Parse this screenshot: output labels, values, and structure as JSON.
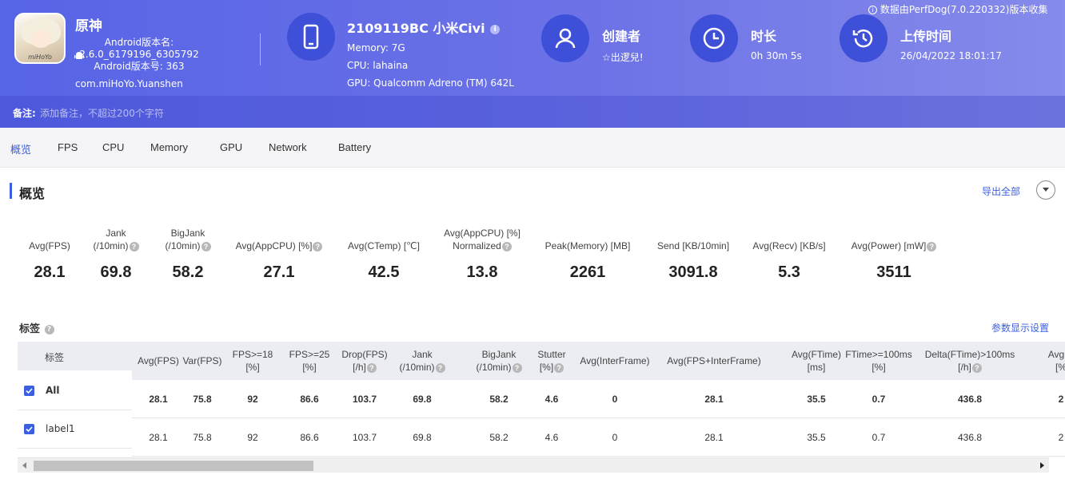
{
  "header": {
    "app_icon_text": "miHoYo",
    "app_name": "原神",
    "android_version_label": "Android版本名:",
    "android_version_name": "2.6.0_6179196_6305792",
    "android_version_code": "Android版本号: 363",
    "package": "com.miHoYo.Yuanshen",
    "device_title": "2109119BC 小米Civi",
    "memory": "Memory: 7G",
    "cpu": "CPU: lahaina",
    "gpu": "GPU: Qualcomm Adreno (TM) 642L",
    "creator_title": "创建者",
    "creator_value": "☆出逻兒!",
    "duration_title": "时长",
    "duration_value": "0h 30m 5s",
    "upload_title": "上传时间",
    "upload_value": "26/04/2022 18:01:17",
    "credit": "数据由PerfDog(7.0.220332)版本收集",
    "note_label": "备注:",
    "note_placeholder": "添加备注，不超过200个字符"
  },
  "tabs": [
    "概览",
    "FPS",
    "CPU",
    "Memory",
    "GPU",
    "Network",
    "Battery"
  ],
  "active_tab": "概览",
  "overview": {
    "title": "概览",
    "export": "导出全部",
    "metrics": [
      {
        "label1": "",
        "label2": "Avg(FPS)",
        "value": "28.1",
        "help": false
      },
      {
        "label1": "Jank",
        "label2": "(/10min)",
        "value": "69.8",
        "help": true
      },
      {
        "label1": "BigJank",
        "label2": "(/10min)",
        "value": "58.2",
        "help": true
      },
      {
        "label1": "",
        "label2": "Avg(AppCPU) [%]",
        "value": "27.1",
        "help": true
      },
      {
        "label1": "",
        "label2": "Avg(CTemp) [℃]",
        "value": "42.5",
        "help": false
      },
      {
        "label1": "Avg(AppCPU) [%]",
        "label2": "Normalized",
        "value": "13.8",
        "help": true
      },
      {
        "label1": "",
        "label2": "Peak(Memory) [MB]",
        "value": "2261",
        "help": false
      },
      {
        "label1": "",
        "label2": "Send [KB/10min]",
        "value": "3091.8",
        "help": false
      },
      {
        "label1": "",
        "label2": "Avg(Recv) [KB/s]",
        "value": "5.3",
        "help": false
      },
      {
        "label1": "",
        "label2": "Avg(Power) [mW]",
        "value": "3511",
        "help": true
      }
    ]
  },
  "tags": {
    "title": "标签",
    "param_settings": "参数显示设置",
    "label_header": "标签",
    "columns": [
      {
        "l1": "Avg(FPS)",
        "l2": "",
        "help": false
      },
      {
        "l1": "Var(FPS)",
        "l2": "",
        "help": false
      },
      {
        "l1": "FPS>=18",
        "l2": "[%]",
        "help": false
      },
      {
        "l1": "FPS>=25",
        "l2": "[%]",
        "help": false
      },
      {
        "l1": "Drop(FPS)",
        "l2": "[/h]",
        "help": true
      },
      {
        "l1": "Jank",
        "l2": "(/10min)",
        "help": true
      },
      {
        "l1": "BigJank",
        "l2": "(/10min)",
        "help": true
      },
      {
        "l1": "Stutter",
        "l2": "[%]",
        "help": true
      },
      {
        "l1": "Avg(InterFrame)",
        "l2": "",
        "help": false
      },
      {
        "l1": "Avg(FPS+InterFrame)",
        "l2": "",
        "help": false
      },
      {
        "l1": "Avg(FTime)",
        "l2": "[ms]",
        "help": false
      },
      {
        "l1": "FTime>=100ms",
        "l2": "[%]",
        "help": false
      },
      {
        "l1": "Delta(FTime)>100ms",
        "l2": "[/h]",
        "help": true
      },
      {
        "l1": "Avg(A",
        "l2": "[%",
        "help": false
      }
    ],
    "rows": [
      {
        "label": "All",
        "checked": true,
        "values": [
          "28.1",
          "75.8",
          "92",
          "86.6",
          "103.7",
          "69.8",
          "58.2",
          "4.6",
          "0",
          "28.1",
          "35.5",
          "0.7",
          "436.8",
          "2"
        ]
      },
      {
        "label": "label1",
        "checked": true,
        "values": [
          "28.1",
          "75.8",
          "92",
          "86.6",
          "103.7",
          "69.8",
          "58.2",
          "4.6",
          "0",
          "28.1",
          "35.5",
          "0.7",
          "436.8",
          "2"
        ]
      }
    ]
  },
  "colors": {
    "accent": "#3b5fe0",
    "header_start": "#5664e6",
    "header_end": "#858bea",
    "icon_circle": "#3e4fd8"
  }
}
